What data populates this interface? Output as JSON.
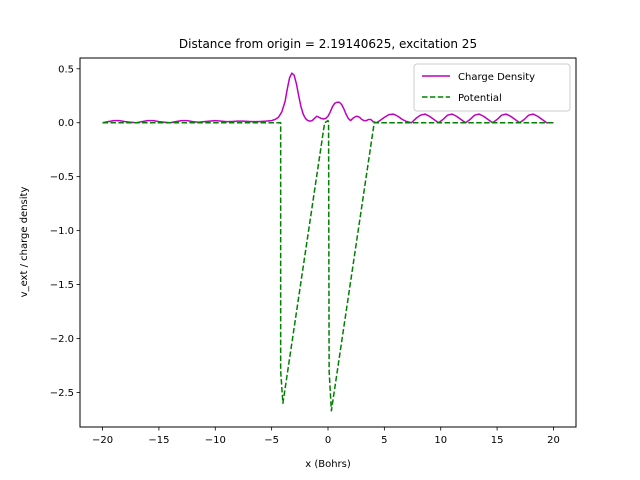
{
  "chart_data": {
    "type": "line",
    "title": "Distance from origin = 2.19140625, excitation 25",
    "xlabel": "x (Bohrs)",
    "ylabel": "v_ext / charge density",
    "xlim": [
      -22,
      22
    ],
    "ylim": [
      -2.82,
      0.6
    ],
    "xticks": [
      -20,
      -15,
      -10,
      -5,
      0,
      5,
      10,
      15,
      20
    ],
    "xtick_labels": [
      "−20",
      "−15",
      "−10",
      "−5",
      "0",
      "5",
      "10",
      "15",
      "20"
    ],
    "yticks": [
      0.5,
      0.0,
      -0.5,
      -1.0,
      -1.5,
      -2.0,
      -2.5
    ],
    "ytick_labels": [
      "0.5",
      "0.0",
      "−0.5",
      "−1.0",
      "−1.5",
      "−2.0",
      "−2.5"
    ],
    "grid": false,
    "legend_position": "top-right",
    "series": [
      {
        "name": "Charge Density",
        "color": "#bf00bf",
        "style": "solid",
        "x": [
          -20,
          -19.5,
          -19,
          -18.5,
          -18,
          -17.5,
          -17,
          -16.5,
          -16,
          -15.5,
          -15,
          -14.5,
          -14,
          -13.5,
          -13,
          -12.5,
          -12,
          -11.5,
          -11,
          -10.5,
          -10,
          -9.5,
          -9,
          -8.5,
          -8,
          -7.5,
          -7,
          -6.5,
          -6,
          -5.5,
          -5,
          -4.7,
          -4.4,
          -4.1,
          -3.8,
          -3.6,
          -3.4,
          -3.2,
          -3.0,
          -2.8,
          -2.6,
          -2.4,
          -2.2,
          -2.0,
          -1.8,
          -1.6,
          -1.4,
          -1.2,
          -1.0,
          -0.8,
          -0.6,
          -0.4,
          -0.2,
          0.0,
          0.2,
          0.4,
          0.6,
          0.8,
          1.0,
          1.2,
          1.4,
          1.6,
          1.8,
          2.0,
          2.2,
          2.4,
          2.6,
          2.8,
          3.0,
          3.2,
          3.4,
          3.6,
          3.8,
          4.0,
          4.3,
          4.6,
          5.0,
          5.4,
          5.8,
          6.2,
          6.6,
          7.0,
          7.4,
          7.8,
          8.2,
          8.6,
          9.0,
          9.4,
          9.8,
          10.2,
          10.6,
          11.0,
          11.4,
          11.8,
          12.2,
          12.6,
          13.0,
          13.4,
          13.8,
          14.2,
          14.6,
          15.0,
          15.4,
          15.8,
          16.2,
          16.6,
          17.0,
          17.4,
          17.8,
          18.2,
          18.6,
          19.0,
          19.4,
          19.8,
          20.0
        ],
        "y": [
          0.0,
          0.01,
          0.02,
          0.02,
          0.01,
          0.005,
          0.0,
          0.01,
          0.02,
          0.02,
          0.01,
          0.005,
          0.0,
          0.01,
          0.02,
          0.02,
          0.01,
          0.005,
          0.01,
          0.015,
          0.02,
          0.015,
          0.01,
          0.012,
          0.015,
          0.015,
          0.012,
          0.01,
          0.012,
          0.015,
          0.02,
          0.03,
          0.05,
          0.1,
          0.2,
          0.32,
          0.42,
          0.46,
          0.44,
          0.36,
          0.25,
          0.15,
          0.08,
          0.04,
          0.02,
          0.015,
          0.02,
          0.04,
          0.06,
          0.05,
          0.04,
          0.035,
          0.04,
          0.06,
          0.1,
          0.15,
          0.18,
          0.19,
          0.19,
          0.17,
          0.13,
          0.08,
          0.04,
          0.02,
          0.04,
          0.055,
          0.06,
          0.05,
          0.03,
          0.02,
          0.02,
          0.03,
          0.03,
          0.01,
          0.0,
          0.02,
          0.05,
          0.075,
          0.08,
          0.06,
          0.03,
          0.01,
          0.0,
          0.04,
          0.07,
          0.08,
          0.06,
          0.03,
          0.0,
          0.03,
          0.07,
          0.08,
          0.06,
          0.03,
          0.0,
          0.03,
          0.07,
          0.08,
          0.06,
          0.03,
          0.0,
          0.03,
          0.07,
          0.08,
          0.06,
          0.03,
          0.0,
          0.03,
          0.07,
          0.08,
          0.06,
          0.03,
          0.0,
          0.0,
          0.0
        ]
      },
      {
        "name": "Potential",
        "color": "#008000",
        "style": "dashed",
        "x": [
          -20,
          -4.2,
          -4.2,
          -4.0,
          -0.3,
          0.0,
          0.05,
          0.1,
          0.3,
          4.1,
          20
        ],
        "y": [
          0.0,
          0.0,
          -2.3,
          -2.6,
          0.0,
          0.02,
          0.0,
          -2.3,
          -2.67,
          0.0,
          0.0
        ]
      }
    ]
  }
}
